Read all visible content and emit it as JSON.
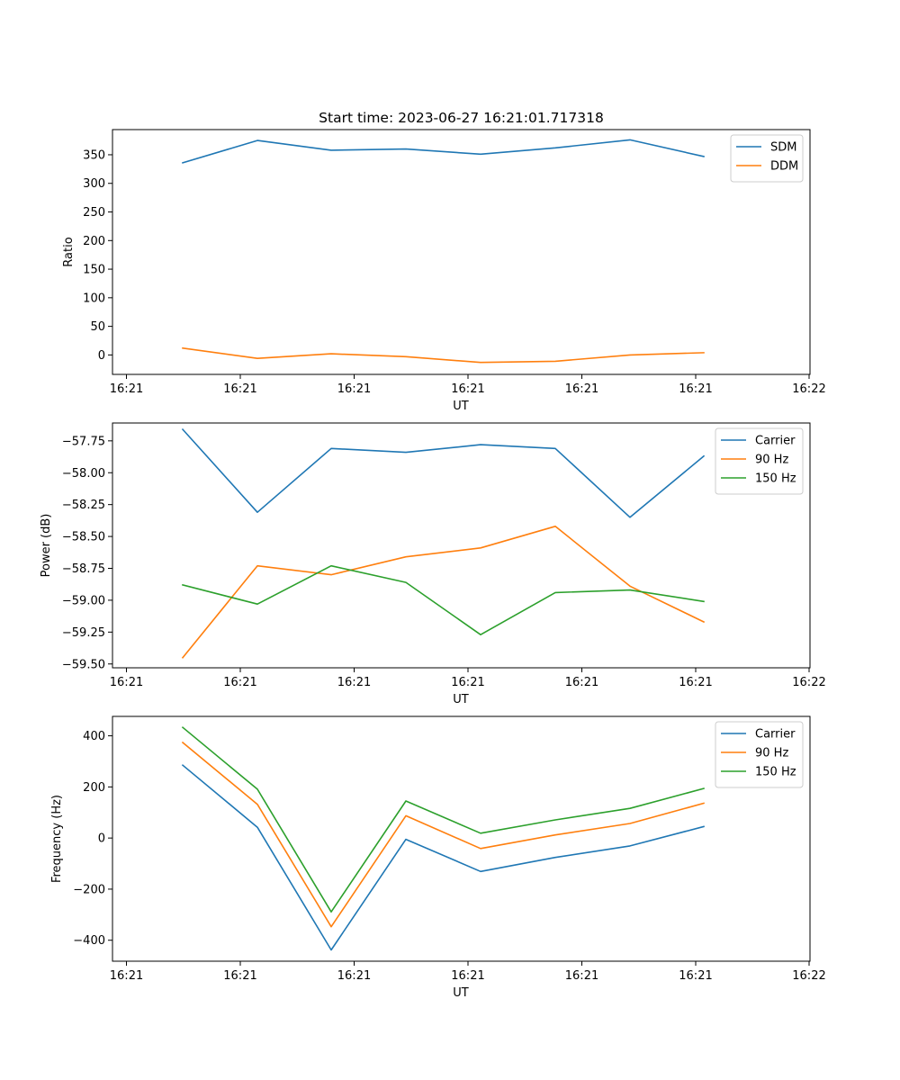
{
  "figure": {
    "title": "Start time: 2023-06-27 16:21:01.717318"
  },
  "chart_data": [
    {
      "type": "line",
      "xlabel": "UT",
      "ylabel": "Ratio",
      "x_tick_labels": [
        "16:21",
        "16:21",
        "16:21",
        "16:21",
        "16:21",
        "16:21",
        "16:22"
      ],
      "y_ticks": [
        0,
        50,
        100,
        150,
        200,
        250,
        300,
        350
      ],
      "y_tick_labels": [
        "0",
        "50",
        "100",
        "150",
        "200",
        "250",
        "300",
        "350"
      ],
      "ylim": [
        -34,
        394
      ],
      "legend_position": "top-right",
      "grid": false,
      "series": [
        {
          "name": "SDM",
          "color": "#1f77b4",
          "values": [
            336,
            375,
            358,
            360,
            351,
            362,
            376,
            347
          ]
        },
        {
          "name": "DDM",
          "color": "#ff7f0e",
          "values": [
            12,
            -6,
            2,
            -3,
            -13,
            -11,
            0,
            4
          ]
        }
      ]
    },
    {
      "type": "line",
      "xlabel": "UT",
      "ylabel": "Power (dB)",
      "x_tick_labels": [
        "16:21",
        "16:21",
        "16:21",
        "16:21",
        "16:21",
        "16:21",
        "16:22"
      ],
      "y_ticks": [
        -59.5,
        -59.25,
        -59.0,
        -58.75,
        -58.5,
        -58.25,
        -58.0,
        -57.75
      ],
      "y_tick_labels": [
        "−59.50",
        "−59.25",
        "−59.00",
        "−58.75",
        "−58.50",
        "−58.25",
        "−58.00",
        "−57.75"
      ],
      "ylim": [
        -59.53,
        -57.61
      ],
      "legend_position": "top-right",
      "grid": false,
      "series": [
        {
          "name": "Carrier",
          "color": "#1f77b4",
          "values": [
            -57.66,
            -58.31,
            -57.81,
            -57.84,
            -57.78,
            -57.81,
            -58.35,
            -57.87
          ]
        },
        {
          "name": "90 Hz",
          "color": "#ff7f0e",
          "values": [
            -59.45,
            -58.73,
            -58.8,
            -58.66,
            -58.59,
            -58.42,
            -58.89,
            -59.17
          ]
        },
        {
          "name": "150 Hz",
          "color": "#2ca02c",
          "values": [
            -58.88,
            -59.03,
            -58.73,
            -58.86,
            -59.27,
            -58.94,
            -58.92,
            -59.01
          ]
        }
      ]
    },
    {
      "type": "line",
      "xlabel": "UT",
      "ylabel": "Frequency (Hz)",
      "x_tick_labels": [
        "16:21",
        "16:21",
        "16:21",
        "16:21",
        "16:21",
        "16:21",
        "16:22"
      ],
      "y_ticks": [
        -400,
        -200,
        0,
        200,
        400
      ],
      "y_tick_labels": [
        "−400",
        "−200",
        "0",
        "200",
        "400"
      ],
      "ylim": [
        -482,
        476
      ],
      "legend_position": "top-right",
      "grid": false,
      "series": [
        {
          "name": "Carrier",
          "color": "#1f77b4",
          "values": [
            285,
            42,
            -438,
            -5,
            -131,
            -76,
            -31,
            45
          ]
        },
        {
          "name": "90 Hz",
          "color": "#ff7f0e",
          "values": [
            374,
            132,
            -347,
            87,
            -41,
            12,
            57,
            136
          ]
        },
        {
          "name": "150 Hz",
          "color": "#2ca02c",
          "values": [
            433,
            191,
            -289,
            145,
            19,
            71,
            116,
            194
          ]
        }
      ]
    }
  ]
}
